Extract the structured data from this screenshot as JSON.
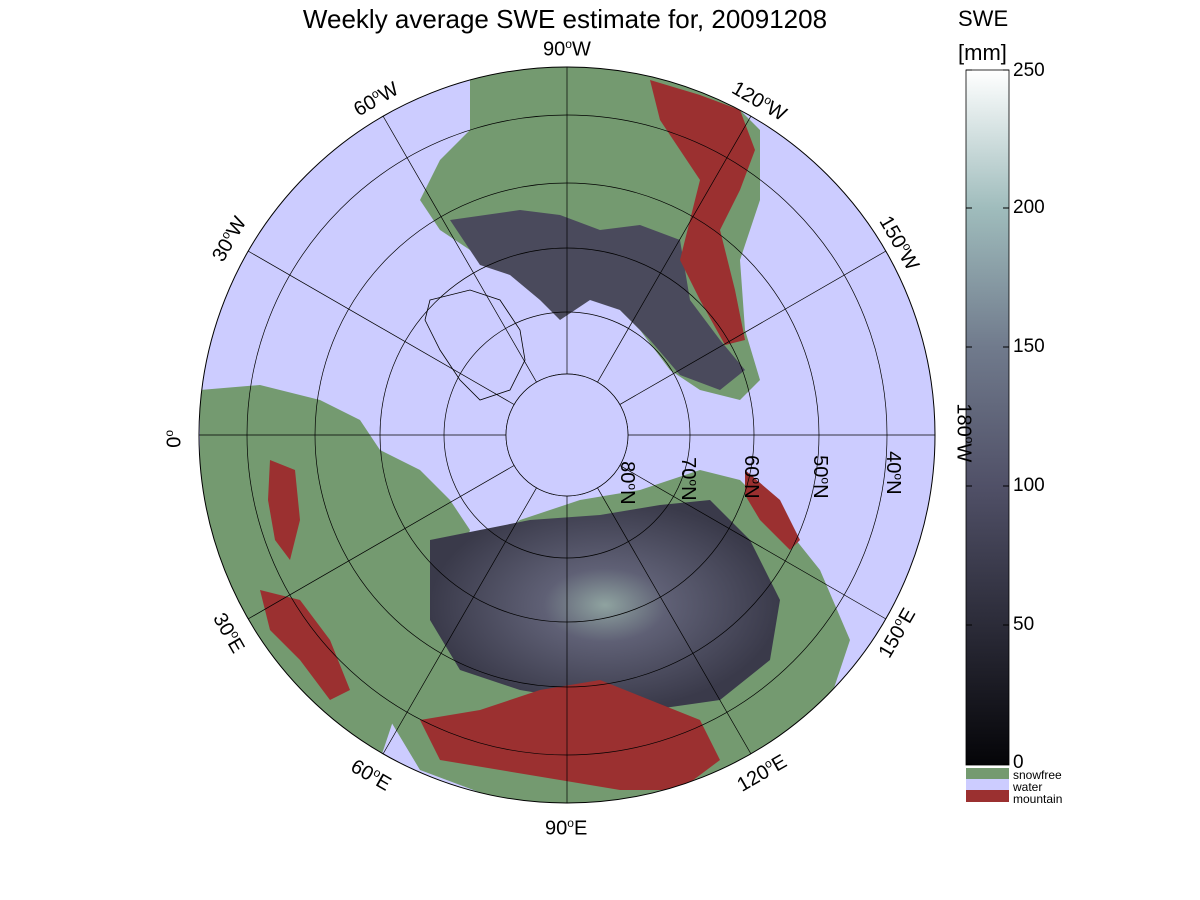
{
  "title": "Weekly average SWE estimate for, 20091208",
  "colorbar": {
    "label_line1": "SWE",
    "label_line2": "[mm]",
    "ticks": [
      "0",
      "50",
      "100",
      "150",
      "200",
      "250"
    ],
    "range": [
      0,
      250
    ]
  },
  "legend": [
    {
      "label": "snowfree",
      "color": "#749a70"
    },
    {
      "label": "water",
      "color": "#ccccff"
    },
    {
      "label": "mountain",
      "color": "#9b3030"
    }
  ],
  "longitude_labels": {
    "lon_90w": "90",
    "lon_60w": "60",
    "lon_120w": "120",
    "lon_30w": "30",
    "lon_150w": "150",
    "lon_0": "0",
    "lon_180w": "180",
    "lon_30e": "30",
    "lon_150e": "150",
    "lon_60e": "60",
    "lon_120e": "120",
    "lon_90e": "90"
  },
  "longitude_suffix": {
    "w": "W",
    "e": "E"
  },
  "latitude_labels": [
    "80",
    "70",
    "60",
    "50",
    "40"
  ],
  "latitude_suffix": "N",
  "degree_symbol": "o",
  "colors": {
    "ocean": "#ccccff",
    "land_snowfree": "#749a70",
    "mountain": "#9b3030",
    "snow_dark": "#2a2a36",
    "snow_mid": "#5a5a70",
    "grid": "#000000"
  }
}
